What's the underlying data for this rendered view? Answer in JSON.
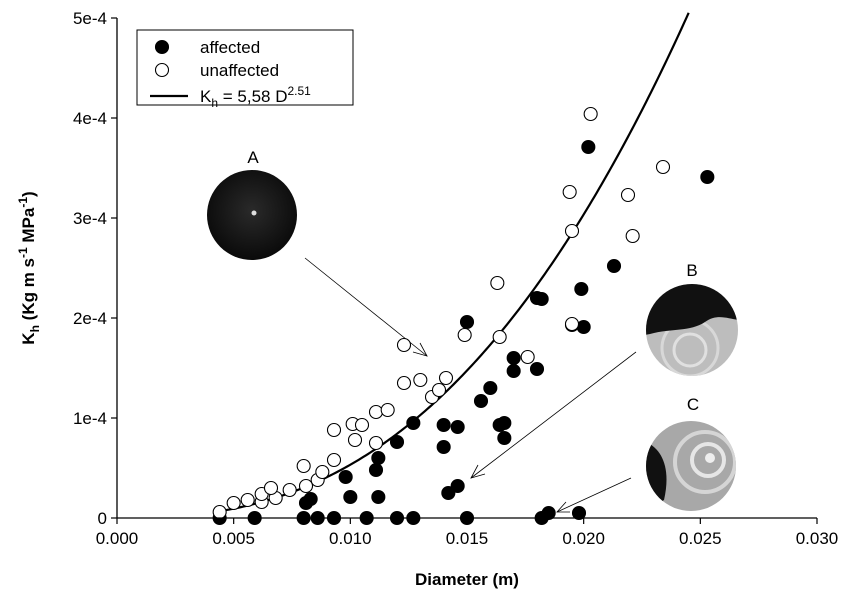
{
  "chart_data": {
    "type": "scatter",
    "xlabel": "Diameter (m)",
    "ylabel": [
      "K",
      "h",
      " (Kg m s",
      "-1",
      " MPa",
      "-1",
      ")"
    ],
    "xlim": [
      0,
      0.03
    ],
    "ylim": [
      0,
      0.0005
    ],
    "xticks": [
      {
        "value": 0,
        "label": "0.000"
      },
      0.005,
      {
        "value": 0.01,
        "label": "0.010"
      },
      0.015,
      {
        "value": 0.02,
        "label": "0.020"
      },
      0.025,
      {
        "value": 0.03,
        "label": "0.030"
      }
    ],
    "yticks": [
      0,
      {
        "value": 0.0001,
        "label": "1e-4"
      },
      {
        "value": 0.0002,
        "label": "2e-4"
      },
      {
        "value": 0.0003,
        "label": "3e-4"
      },
      {
        "value": 0.0004,
        "label": "4e-4"
      },
      {
        "value": 0.0005,
        "label": "5e-4"
      }
    ],
    "legend": "upper left",
    "series": [
      {
        "name": "affected",
        "color": "#000000",
        "filled": true,
        "x": [
          0.0044,
          0.0059,
          0.008,
          0.0086,
          0.0093,
          0.0107,
          0.012,
          0.0127,
          0.015,
          0.0182,
          0.0185,
          0.0198,
          0.0081,
          0.0083,
          0.0098,
          0.01,
          0.0112,
          0.0111,
          0.0112,
          0.012,
          0.0127,
          0.014,
          0.014,
          0.0146,
          0.015,
          0.0142,
          0.0146,
          0.0156,
          0.016,
          0.0164,
          0.0166,
          0.0166,
          0.017,
          0.017,
          0.018,
          0.018,
          0.0182,
          0.0199,
          0.02,
          0.0195,
          0.0202,
          0.0213,
          0.0253
        ],
        "values": [
          0,
          0,
          0,
          0,
          0,
          0,
          0,
          0,
          0,
          0,
          5e-06,
          5e-06,
          1.5e-05,
          1.9e-05,
          4.1e-05,
          2.1e-05,
          2.1e-05,
          4.8e-05,
          6e-05,
          7.6e-05,
          9.5e-05,
          9.3e-05,
          7.1e-05,
          9.1e-05,
          0.000196,
          2.5e-05,
          3.2e-05,
          0.000117,
          0.00013,
          9.3e-05,
          8e-05,
          9.5e-05,
          0.00016,
          0.000147,
          0.000149,
          0.00022,
          0.000219,
          0.000229,
          0.000191,
          0.000193,
          0.000371,
          0.000252,
          0.000341
        ]
      },
      {
        "name": "unaffected",
        "color": "#000000",
        "filled": false,
        "x": [
          0.0044,
          0.005,
          0.0056,
          0.0062,
          0.0062,
          0.0068,
          0.0066,
          0.0074,
          0.008,
          0.0081,
          0.0086,
          0.0088,
          0.0093,
          0.0093,
          0.0101,
          0.0102,
          0.0105,
          0.0111,
          0.0111,
          0.0116,
          0.0123,
          0.0123,
          0.013,
          0.0135,
          0.0138,
          0.0141,
          0.0149,
          0.0163,
          0.0164,
          0.0176,
          0.0195,
          0.0194,
          0.0195,
          0.0203,
          0.0219,
          0.0221,
          0.0234
        ],
        "values": [
          6e-06,
          1.5e-05,
          1.8e-05,
          1.6e-05,
          2.4e-05,
          2e-05,
          3e-05,
          2.8e-05,
          5.2e-05,
          3.2e-05,
          3.8e-05,
          4.6e-05,
          8.8e-05,
          5.8e-05,
          9.4e-05,
          7.8e-05,
          9.3e-05,
          0.000106,
          7.5e-05,
          0.000108,
          0.000173,
          0.000135,
          0.000138,
          0.000121,
          0.000128,
          0.00014,
          0.000183,
          0.000235,
          0.000181,
          0.000161,
          0.000194,
          0.000326,
          0.000287,
          0.000404,
          0.000323,
          0.000282,
          0.000351
        ]
      }
    ],
    "fit": {
      "label": [
        "K",
        "h",
        " = 5,58 D",
        "2.51"
      ],
      "color": "#000000",
      "coefficient": 5.58,
      "exponent": 2.51,
      "xrange": [
        0.0043,
        0.0245
      ]
    },
    "annotations": [
      "A",
      "B",
      "C"
    ]
  }
}
